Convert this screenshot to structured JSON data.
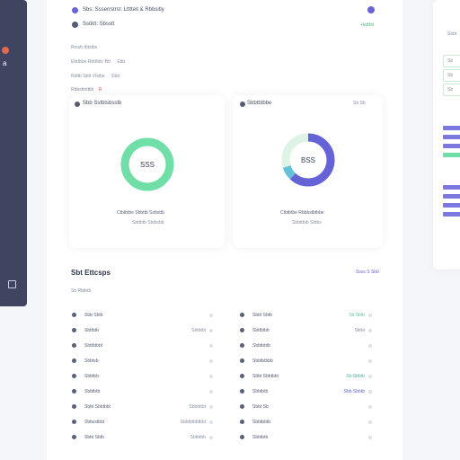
{
  "top_banner": {
    "title": "Sbs: Ssserrstrst: Ltttteit & Rbbsitly",
    "subtitle": "Sstitrt: Sbsstt",
    "status_badge": "+kdthtt"
  },
  "sidebar": {
    "avatar_badge_color": "#e06a4f",
    "items": [
      {
        "label": "a",
        "icon": "user-icon"
      },
      {
        "label": "",
        "icon": "grid-icon"
      }
    ]
  },
  "filters": [
    {
      "label": "Rrssb tbtstbe",
      "value": ""
    },
    {
      "label": "Ettrtbbe Rbtttbb: Btt",
      "value": "Ettb"
    },
    {
      "label": "Rdttb Sbtt Vtstbe",
      "value": "Ebb"
    },
    {
      "label": "Rbbsttntttib",
      "value": "R"
    }
  ],
  "cards": [
    {
      "title": "Sbb Sstbtsbsstb",
      "center_value": "SSS",
      "caption": "Ctbtbtbe Sbbttb Ssttsttb",
      "subcaption": "Sbttbtb Sbtbsbb",
      "ring_color": "#6fdfa7",
      "ring_track": "#dcf6e8",
      "segments": [
        {
          "label": "a",
          "value": 1.0
        }
      ]
    },
    {
      "title": "Sbbtbtbbe",
      "header_right": "Sb  Sb",
      "center_value": "BSS",
      "caption": "Ctbtbtbe Rbbbstbtbbe",
      "subcaption": "Sbbttbtb Sbtbs",
      "ring_color": "#6663d6",
      "ring_track": "#e3f6ec",
      "segments": [
        {
          "label": "a",
          "value": 0.62,
          "color": "#6663d6"
        },
        {
          "label": "b",
          "value": 0.08,
          "color": "#65c1d8"
        },
        {
          "label": "c",
          "value": 0.3,
          "color": "#dcf3e6"
        }
      ]
    }
  ],
  "section": {
    "title": "Sbt Ettcsps",
    "subtitle": "Sb Rbtbtb",
    "link": "Ssss S Sbb"
  },
  "list_left": [
    {
      "label": "Sbb Sbtb",
      "value": ""
    },
    {
      "label": "Sbttbtb",
      "value": "Sbtbtbt"
    },
    {
      "label": "Sbttbtbbt",
      "value": ""
    },
    {
      "label": "Sbbtsb",
      "value": ""
    },
    {
      "label": "Sbbtbb",
      "value": ""
    },
    {
      "label": "Sbbtbtb",
      "value": ""
    },
    {
      "label": "Sbbt Sbbtbbt",
      "value": "Sbbtbtbt"
    },
    {
      "label": "Sbbsstbbt",
      "value": "Sbbtbtbbtbbt"
    },
    {
      "label": "Sbbt Sbtb",
      "value": "Sbtbtbb"
    }
  ],
  "list_right": [
    {
      "label": "Sbbt Sbtb",
      "badge": "Sb Sbtb",
      "badge_color": "#5bc89a"
    },
    {
      "label": "Sbttbtbb",
      "badge": "Sbtbt"
    },
    {
      "label": "Sbbtbbtb",
      "badge": ""
    },
    {
      "label": "Sbbtbtbbb",
      "badge": ""
    },
    {
      "label": "Sbbt Sbbtbbt",
      "badge": "Sb Sbbtb",
      "badge_color": "#4bb3a0"
    },
    {
      "label": "Sbbtbtb",
      "badge": "Sbb Sbbtb",
      "badge_color": "#6663d6"
    },
    {
      "label": "Sbbt Sb",
      "badge": ""
    },
    {
      "label": "Sbbtbbtb",
      "badge": ""
    },
    {
      "label": "Sbbtbtb",
      "badge": ""
    }
  ],
  "right_panel": {
    "title": "Sbbt",
    "boxes": [
      "Sb",
      "Sb",
      "Sb"
    ],
    "bars_1": [
      "#7b79e0",
      "#7b79e0",
      "#7b79e0",
      "#6fdfa7"
    ],
    "bars_2": [
      "#7b79e0",
      "#7b79e0",
      "#7b79e0",
      "#7b79e0"
    ]
  }
}
